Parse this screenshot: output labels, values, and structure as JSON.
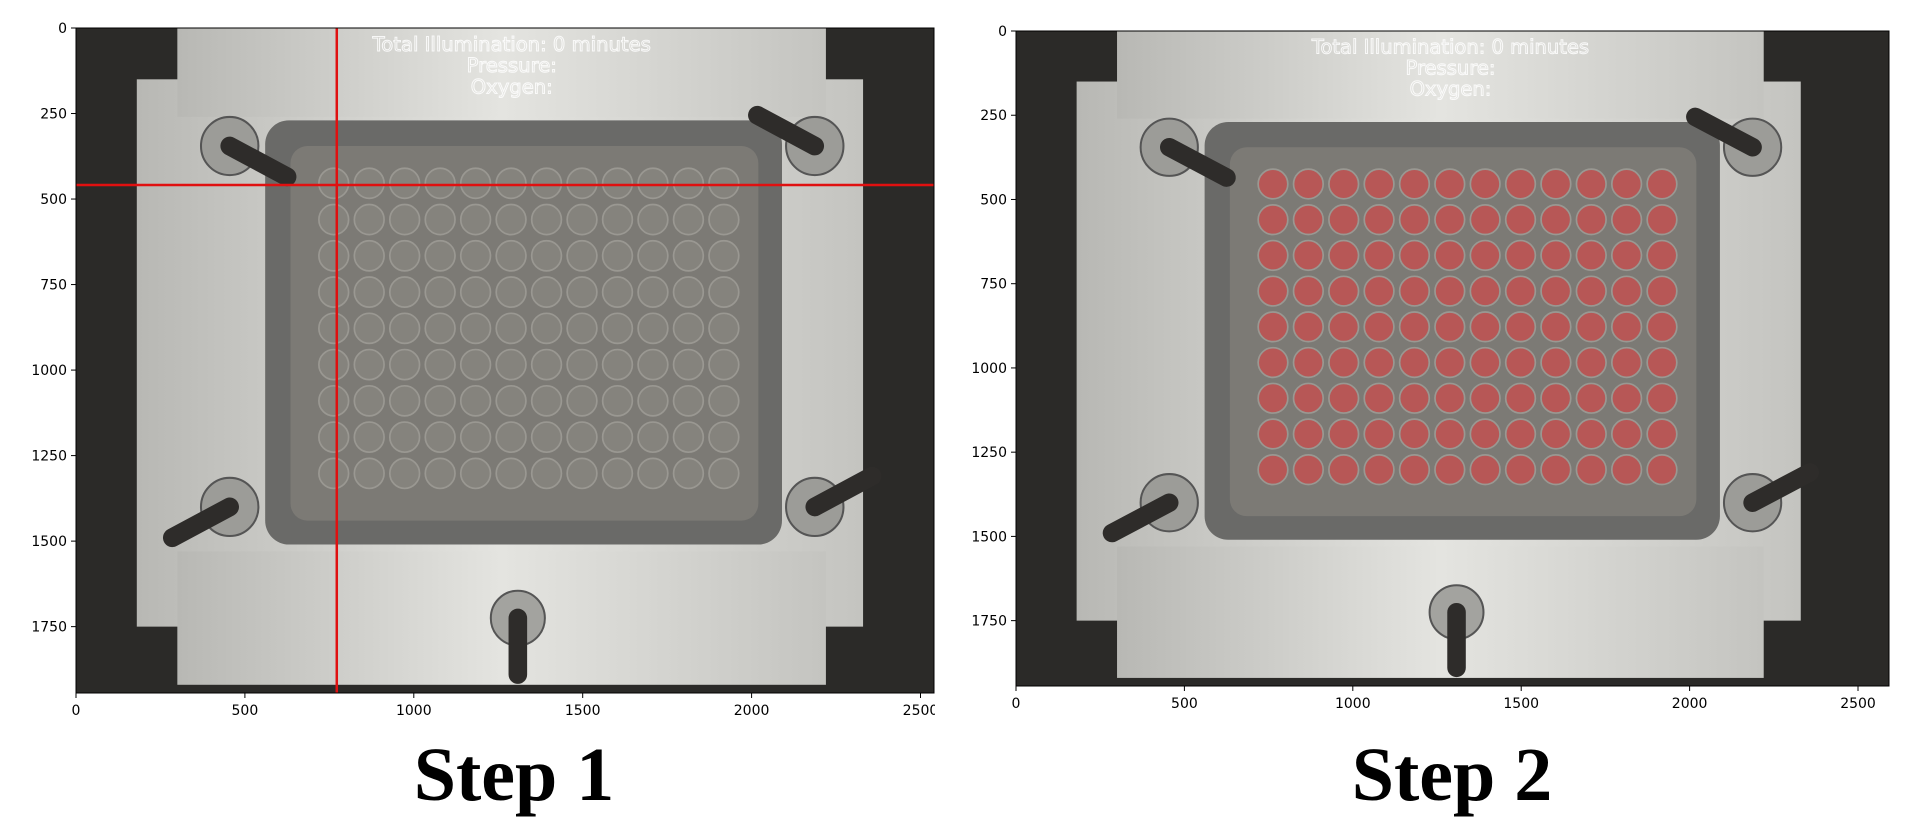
{
  "chart_data": [
    {
      "type": "image",
      "title": "Step 1",
      "annotations": [
        "Total Illumination: 0 minutes",
        "Pressure:",
        "Oxygen:"
      ],
      "xlim": [
        0,
        2540
      ],
      "ylim": [
        1944,
        0
      ],
      "xticks": [
        0,
        500,
        1000,
        1500,
        2000,
        2500
      ],
      "yticks": [
        0,
        250,
        500,
        750,
        1000,
        1250,
        1500,
        1750
      ],
      "crosshair": {
        "x": 772,
        "y": 459,
        "color": "#e01010"
      },
      "wells_highlighted": false
    },
    {
      "type": "image",
      "title": "Step 2",
      "annotations": [
        "Total Illumination: 0 minutes",
        "Pressure:",
        "Oxygen:"
      ],
      "xlim": [
        0,
        2592
      ],
      "ylim": [
        1944,
        0
      ],
      "xticks": [
        0,
        500,
        1000,
        1500,
        2000,
        2500
      ],
      "yticks": [
        0,
        250,
        500,
        750,
        1000,
        1250,
        1500,
        1750
      ],
      "wells_highlighted": true,
      "highlight_color": "#d04848"
    }
  ]
}
